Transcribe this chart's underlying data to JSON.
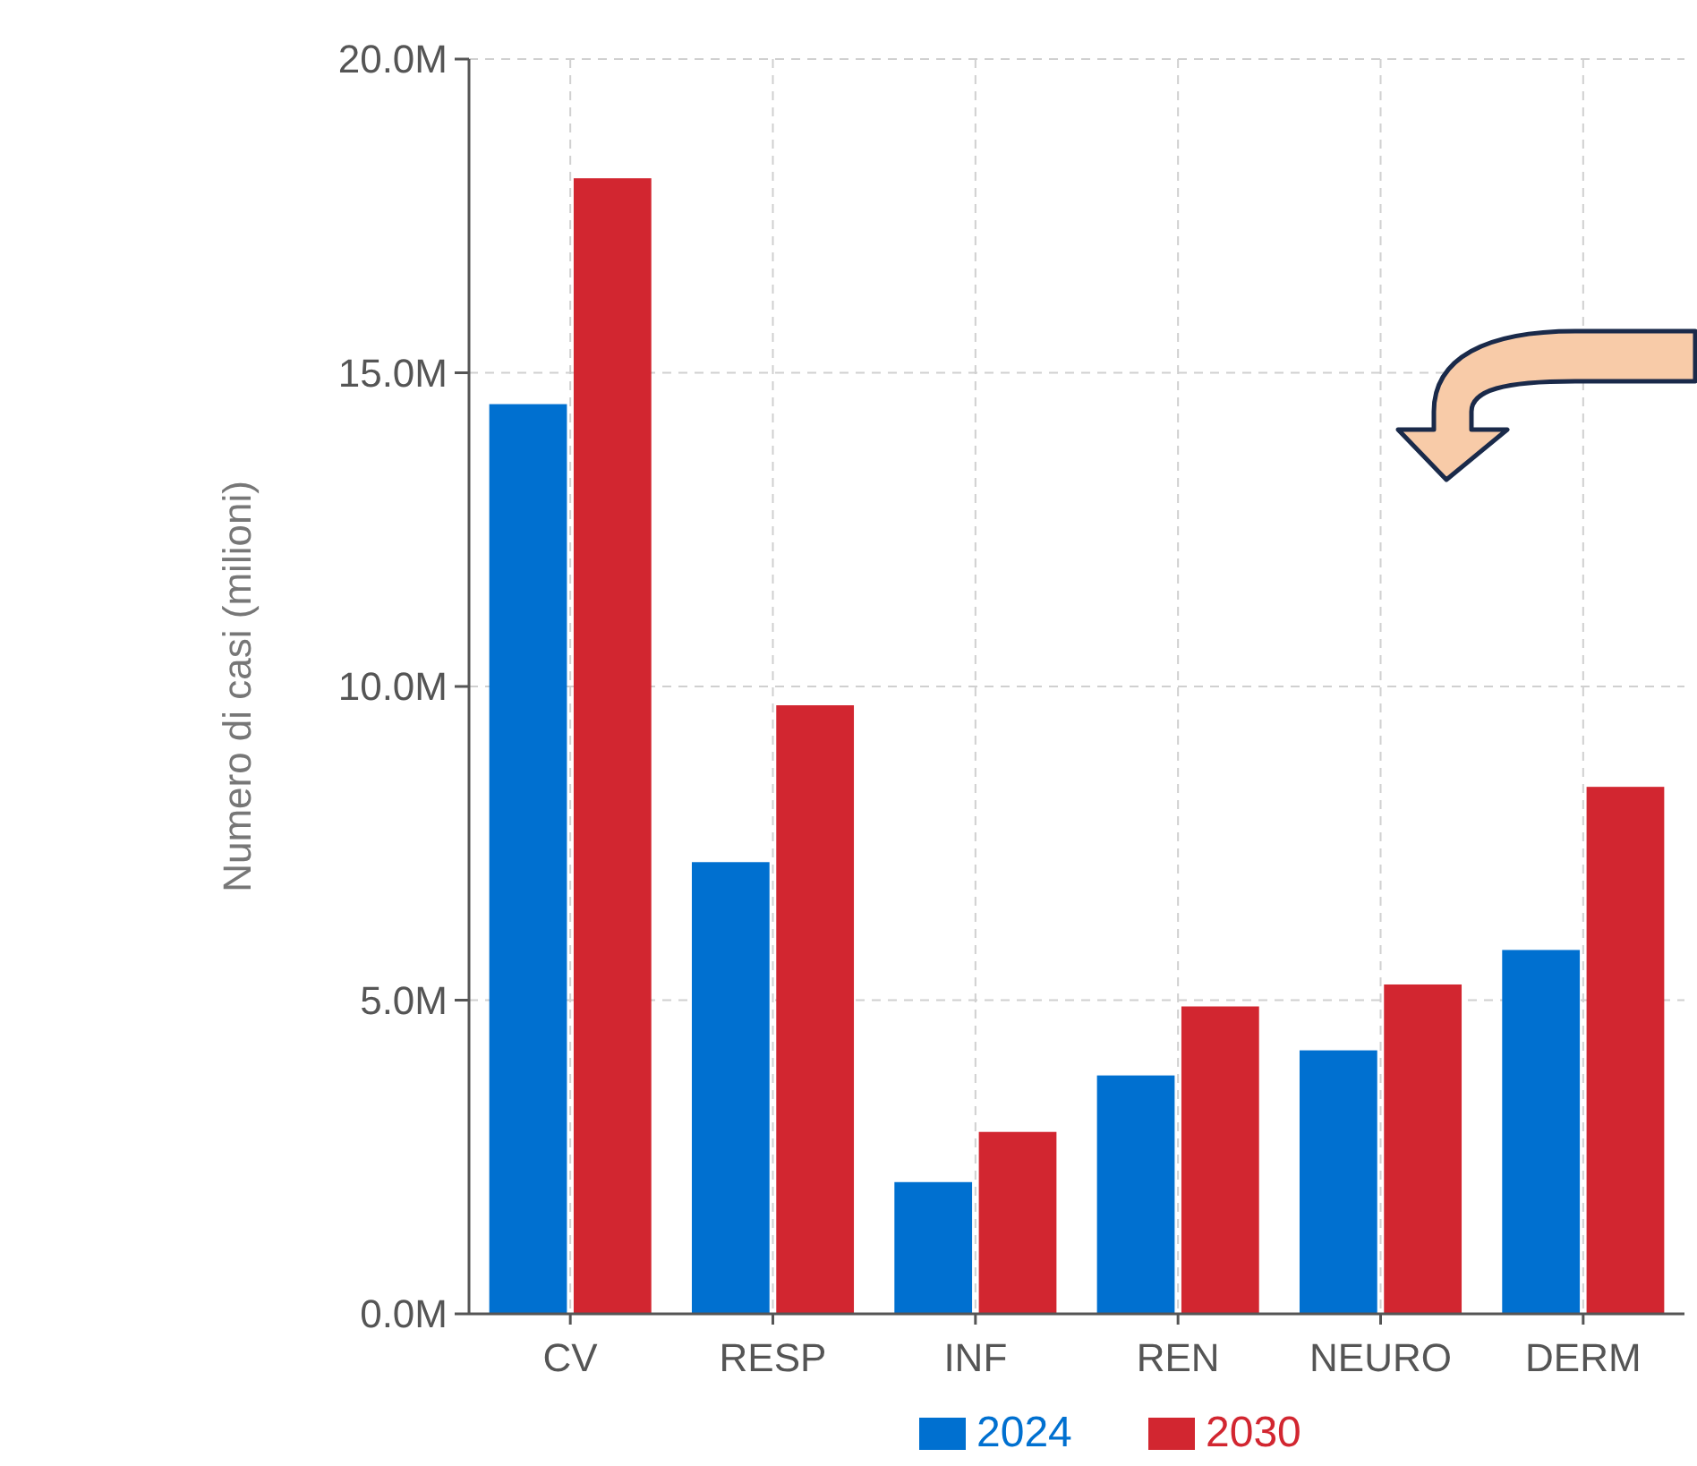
{
  "chart_data": {
    "type": "bar",
    "ylabel": "Numero di casi (milioni)",
    "categories": [
      "CV",
      "RESP",
      "INF",
      "REN",
      "NEURO",
      "DERM"
    ],
    "series": [
      {
        "name": "2024",
        "color": "#0070d0",
        "values": [
          14.5,
          7.2,
          2.1,
          3.8,
          4.2,
          5.8
        ]
      },
      {
        "name": "2030",
        "color": "#d22630",
        "values": [
          18.1,
          9.7,
          2.9,
          4.9,
          5.25,
          8.4
        ]
      }
    ],
    "ylim": [
      0,
      20
    ],
    "yticks": [
      {
        "value": 0,
        "label": "0.0M"
      },
      {
        "value": 5,
        "label": "5.0M"
      },
      {
        "value": 10,
        "label": "10.0M"
      },
      {
        "value": 15,
        "label": "15.0M"
      },
      {
        "value": 20,
        "label": "20.0M"
      }
    ],
    "grid": true,
    "legend": "bottom"
  }
}
